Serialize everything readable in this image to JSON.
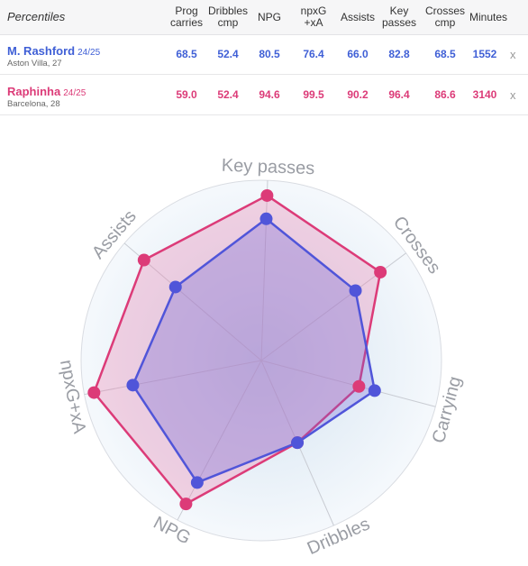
{
  "table": {
    "header_title": "Percentiles",
    "columns": [
      "Prog\ncarries",
      "Dribbles\ncmp",
      "NPG",
      "npxG\n+xA",
      "Assists",
      "Key\npasses",
      "Crosses\ncmp",
      "Minutes"
    ],
    "rows": [
      {
        "name": "M. Rashford",
        "season": "24/25",
        "club": "Aston Villa, 27",
        "values": [
          "68.5",
          "52.4",
          "80.5",
          "76.4",
          "66.0",
          "82.8",
          "68.5",
          "1552"
        ],
        "close": "x"
      },
      {
        "name": "Raphinha",
        "season": "24/25",
        "club": "Barcelona, 28",
        "values": [
          "59.0",
          "52.4",
          "94.6",
          "99.5",
          "90.2",
          "96.4",
          "86.6",
          "3140"
        ],
        "close": "x"
      }
    ]
  },
  "chart_data": {
    "type": "radar",
    "axes": [
      "Key passes",
      "Crosses",
      "Carrying",
      "Dribbles",
      "NPG",
      "npxG+xA",
      "Assists"
    ],
    "range": [
      0,
      100
    ],
    "series": [
      {
        "name": "M. Rashford",
        "values": [
          82.8,
          68.5,
          68.5,
          52.4,
          80.5,
          76.4,
          66.0
        ],
        "color": "#5055d9"
      },
      {
        "name": "Raphinha",
        "values": [
          96.4,
          86.6,
          59.0,
          52.4,
          94.6,
          99.5,
          90.2
        ],
        "color": "#dc3b78"
      }
    ]
  },
  "colors": {
    "rashford": "#3f5fd6",
    "raphinha": "#dc3b78",
    "grid": "#d9dce2"
  }
}
